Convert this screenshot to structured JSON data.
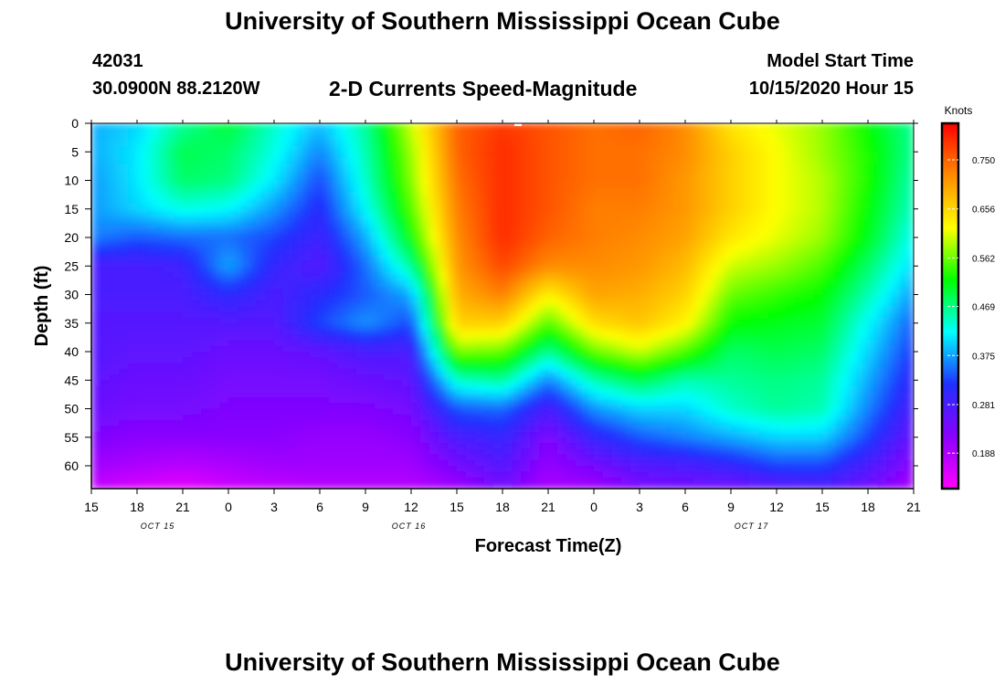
{
  "page": {
    "title_top": "University of Southern Mississippi Ocean Cube",
    "title_bottom": "University of Southern Mississippi Ocean Cube",
    "station_id": "42031",
    "station_coords": "30.0900N 88.2120W",
    "model_start_label": "Model Start Time",
    "model_start_value": "10/15/2020 Hour 15"
  },
  "chart_data": {
    "type": "heatmap",
    "title": "2-D Currents Speed-Magnitude",
    "xlabel": "Forecast Time(Z)",
    "ylabel": "Depth (ft)",
    "x_tick_labels": [
      "15",
      "18",
      "21",
      "0",
      "3",
      "6",
      "9",
      "12",
      "15",
      "18",
      "21",
      "0",
      "3",
      "6",
      "9",
      "12",
      "15",
      "18",
      "21"
    ],
    "date_labels": [
      {
        "text": "OCT 15",
        "tick_index": 1.45
      },
      {
        "text": "OCT 16",
        "tick_index": 6.95
      },
      {
        "text": "OCT 17",
        "tick_index": 14.45
      }
    ],
    "y_ticks": [
      0,
      5,
      10,
      15,
      20,
      25,
      30,
      35,
      40,
      45,
      50,
      55,
      60
    ],
    "ylim": [
      0,
      64
    ],
    "time_range_hours": [
      0,
      54
    ],
    "colorbar": {
      "title": "Knots",
      "tick_labels": [
        "0.750",
        "0.656",
        "0.562",
        "0.469",
        "0.375",
        "0.281",
        "0.188"
      ],
      "range": [
        0.12,
        0.82
      ],
      "colors": [
        "#ff00ff",
        "#8a00ff",
        "#2030ff",
        "#00ffff",
        "#00ff00",
        "#ffff00",
        "#ff8c00",
        "#ff0000"
      ]
    },
    "grid": {
      "times_hours": [
        0,
        3,
        6,
        9,
        12,
        15,
        18,
        21,
        24,
        27,
        30,
        33,
        36,
        39,
        42,
        45,
        48,
        51,
        54
      ],
      "depths_ft": [
        0,
        5,
        10,
        15,
        20,
        25,
        30,
        35,
        40,
        45,
        50,
        55,
        60,
        64
      ],
      "speed_knots": [
        [
          0.38,
          0.4,
          0.46,
          0.5,
          0.44,
          0.39,
          0.46,
          0.6,
          0.75,
          0.78,
          0.76,
          0.74,
          0.75,
          0.72,
          0.64,
          0.61,
          0.58,
          0.52,
          0.46
        ],
        [
          0.38,
          0.41,
          0.49,
          0.48,
          0.43,
          0.36,
          0.45,
          0.58,
          0.75,
          0.79,
          0.76,
          0.74,
          0.74,
          0.72,
          0.66,
          0.62,
          0.58,
          0.53,
          0.46
        ],
        [
          0.37,
          0.41,
          0.48,
          0.47,
          0.41,
          0.33,
          0.44,
          0.57,
          0.74,
          0.79,
          0.76,
          0.74,
          0.74,
          0.71,
          0.66,
          0.62,
          0.59,
          0.53,
          0.45
        ],
        [
          0.37,
          0.4,
          0.43,
          0.42,
          0.37,
          0.31,
          0.42,
          0.55,
          0.73,
          0.79,
          0.76,
          0.73,
          0.73,
          0.71,
          0.66,
          0.62,
          0.59,
          0.52,
          0.44
        ],
        [
          0.36,
          0.34,
          0.35,
          0.35,
          0.33,
          0.29,
          0.38,
          0.52,
          0.72,
          0.79,
          0.75,
          0.73,
          0.72,
          0.7,
          0.64,
          0.61,
          0.58,
          0.51,
          0.42
        ],
        [
          0.28,
          0.28,
          0.29,
          0.38,
          0.3,
          0.27,
          0.35,
          0.46,
          0.71,
          0.77,
          0.72,
          0.72,
          0.71,
          0.68,
          0.6,
          0.58,
          0.55,
          0.48,
          0.4
        ],
        [
          0.28,
          0.28,
          0.28,
          0.31,
          0.28,
          0.31,
          0.34,
          0.38,
          0.69,
          0.73,
          0.63,
          0.7,
          0.69,
          0.66,
          0.56,
          0.54,
          0.52,
          0.45,
          0.37
        ],
        [
          0.27,
          0.27,
          0.27,
          0.27,
          0.27,
          0.33,
          0.37,
          0.33,
          0.66,
          0.66,
          0.55,
          0.65,
          0.67,
          0.63,
          0.52,
          0.51,
          0.5,
          0.42,
          0.34
        ],
        [
          0.27,
          0.26,
          0.26,
          0.25,
          0.25,
          0.26,
          0.28,
          0.28,
          0.57,
          0.56,
          0.46,
          0.56,
          0.6,
          0.55,
          0.48,
          0.49,
          0.48,
          0.4,
          0.32
        ],
        [
          0.26,
          0.25,
          0.25,
          0.24,
          0.24,
          0.24,
          0.25,
          0.26,
          0.44,
          0.46,
          0.36,
          0.45,
          0.49,
          0.45,
          0.46,
          0.47,
          0.46,
          0.38,
          0.3
        ],
        [
          0.25,
          0.24,
          0.24,
          0.23,
          0.23,
          0.23,
          0.23,
          0.24,
          0.34,
          0.35,
          0.28,
          0.37,
          0.4,
          0.4,
          0.44,
          0.46,
          0.45,
          0.36,
          0.28
        ],
        [
          0.23,
          0.22,
          0.22,
          0.22,
          0.22,
          0.21,
          0.21,
          0.22,
          0.28,
          0.3,
          0.23,
          0.3,
          0.34,
          0.36,
          0.38,
          0.4,
          0.4,
          0.33,
          0.25
        ],
        [
          0.2,
          0.19,
          0.18,
          0.19,
          0.2,
          0.2,
          0.2,
          0.2,
          0.24,
          0.27,
          0.21,
          0.24,
          0.27,
          0.28,
          0.3,
          0.33,
          0.33,
          0.28,
          0.22
        ],
        [
          0.17,
          0.15,
          0.14,
          0.16,
          0.17,
          0.18,
          0.18,
          0.18,
          0.2,
          0.24,
          0.19,
          0.2,
          0.23,
          0.24,
          0.24,
          0.26,
          0.27,
          0.24,
          0.19
        ]
      ]
    }
  }
}
